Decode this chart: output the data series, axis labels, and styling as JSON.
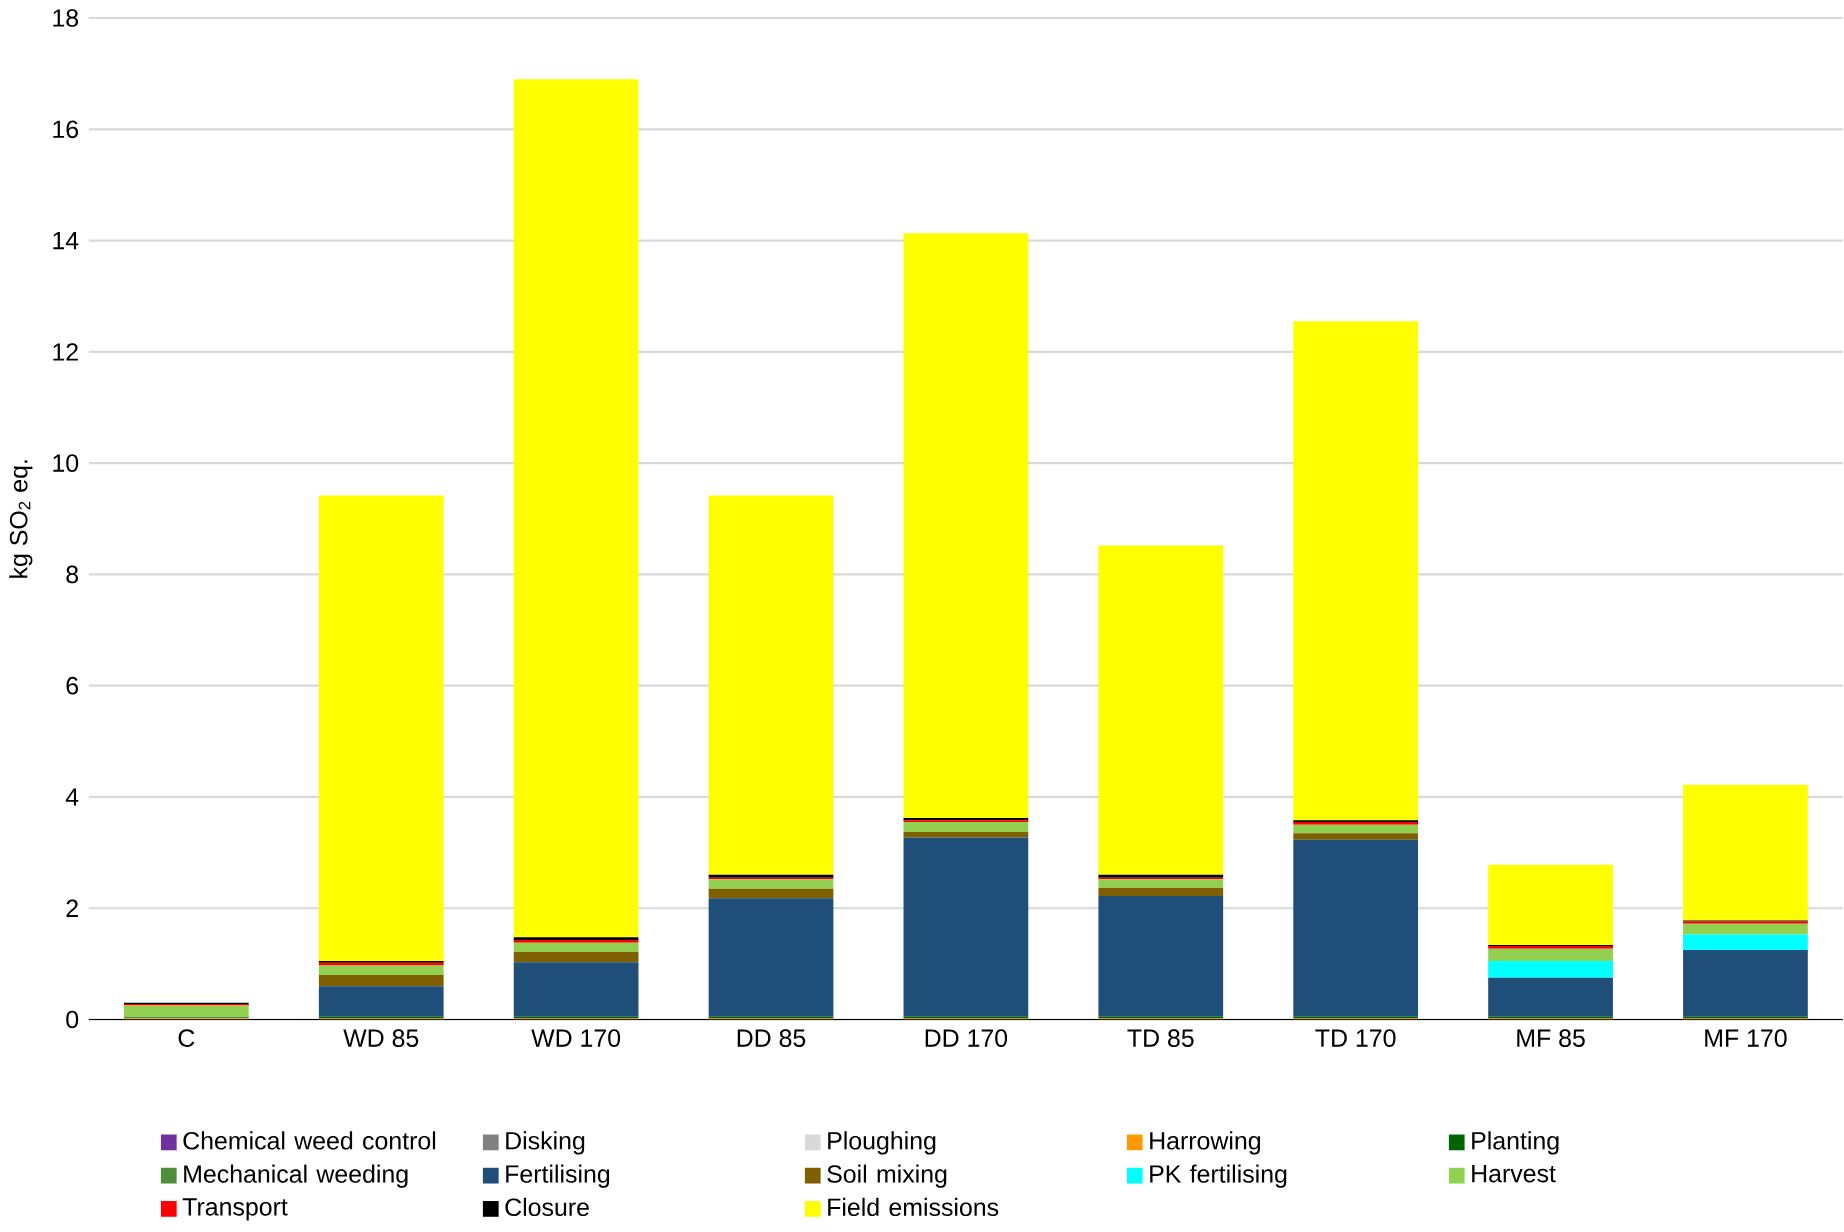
{
  "chart_data": {
    "type": "bar",
    "stacked": true,
    "ylabel": "kg SO$_{2}$ eq.",
    "categories": [
      "C",
      "WD 85",
      "WD 170",
      "DD 85",
      "DD 170",
      "TD 85",
      "TD 170",
      "MF 85",
      "MF 170"
    ],
    "ylim": [
      0,
      18
    ],
    "yticks": [
      0,
      2,
      4,
      6,
      8,
      10,
      12,
      14,
      16,
      18
    ],
    "grid": "y",
    "legend": "bottom",
    "series": [
      {
        "name": "Chemical weed control",
        "color": "#7030a0",
        "values": [
          0,
          0,
          0,
          0,
          0,
          0,
          0,
          0,
          0
        ]
      },
      {
        "name": "Disking",
        "color": "#808080",
        "values": [
          0,
          0,
          0,
          0,
          0,
          0,
          0,
          0,
          0
        ]
      },
      {
        "name": "Ploughing",
        "color": "#d9d9d9",
        "values": [
          0,
          0,
          0,
          0,
          0,
          0,
          0,
          0,
          0
        ]
      },
      {
        "name": "Harrowing",
        "color": "#ff9900",
        "values": [
          0.02,
          0.02,
          0.02,
          0.02,
          0.02,
          0.02,
          0.02,
          0.02,
          0.02
        ]
      },
      {
        "name": "Planting",
        "color": "#006400",
        "values": [
          0,
          0.03,
          0.03,
          0.03,
          0.03,
          0.03,
          0.03,
          0.03,
          0.03
        ]
      },
      {
        "name": "Mechanical weeding",
        "color": "#4e8f3a",
        "values": [
          0.03,
          0,
          0,
          0,
          0,
          0,
          0,
          0,
          0
        ]
      },
      {
        "name": "Fertilising",
        "color": "#1f4e79",
        "values": [
          0,
          0.55,
          0.98,
          2.13,
          3.22,
          2.17,
          3.18,
          0.7,
          1.2
        ]
      },
      {
        "name": "Soil mixing",
        "color": "#7f6000",
        "values": [
          0,
          0.2,
          0.19,
          0.17,
          0.1,
          0.15,
          0.12,
          0,
          0
        ]
      },
      {
        "name": "PK fertilising",
        "color": "#00ffff",
        "values": [
          0,
          0,
          0,
          0,
          0,
          0,
          0,
          0.3,
          0.28
        ]
      },
      {
        "name": "Harvest",
        "color": "#92d050",
        "values": [
          0.2,
          0.17,
          0.16,
          0.17,
          0.18,
          0.15,
          0.15,
          0.22,
          0.19
        ]
      },
      {
        "name": "Transport",
        "color": "#ff0000",
        "values": [
          0.03,
          0.05,
          0.05,
          0.03,
          0.03,
          0.03,
          0.05,
          0.05,
          0.04
        ]
      },
      {
        "name": "Closure",
        "color": "#000000",
        "values": [
          0.02,
          0.03,
          0.05,
          0.05,
          0.04,
          0.05,
          0.03,
          0.02,
          0.02
        ]
      },
      {
        "name": "Field emissions",
        "color": "#ffff00",
        "values": [
          0,
          8.37,
          15.42,
          6.82,
          10.51,
          5.92,
          8.97,
          1.44,
          2.44
        ]
      }
    ]
  }
}
